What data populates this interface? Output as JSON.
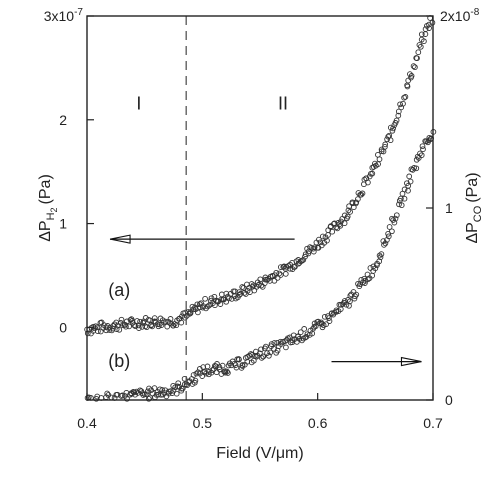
{
  "chart_data": {
    "type": "scatter",
    "xlabel": "Field (V/μm)",
    "xlim": [
      0.4,
      0.7
    ],
    "x_ticks": [
      "0.4",
      "0.5",
      "0.6",
      "0.7"
    ],
    "y_left": {
      "label_main": "ΔP",
      "label_sub": "H",
      "label_subsub": "2",
      "label_unit": "(Pa)",
      "lim": [
        -0.7,
        3.0
      ],
      "ticks": [
        "0",
        "1",
        "2"
      ],
      "top_tick": "3x10",
      "top_tick_exp": "-7"
    },
    "y_right": {
      "label_main": "ΔP",
      "label_sub": "CO",
      "label_unit": "(Pa)",
      "lim": [
        0,
        2
      ],
      "ticks": [
        "0",
        "1"
      ],
      "top_tick": "2x10",
      "top_tick_exp": "-8"
    },
    "divider_x": 0.486,
    "regions": [
      {
        "label": "I",
        "x": 0.445,
        "y": 2.1
      },
      {
        "label": "II",
        "x": 0.57,
        "y": 2.1
      }
    ],
    "annotations": [
      {
        "label": "(a)",
        "x": 0.428,
        "y": 0.3
      },
      {
        "label": "(b)",
        "x": 0.428,
        "y": -0.38
      }
    ],
    "arrows": [
      {
        "from_x": 0.58,
        "from_y": 0.85,
        "to_x": 0.42,
        "to_y": 0.85,
        "axis": "left"
      },
      {
        "from_x": 0.612,
        "from_y": -0.33,
        "to_x": 0.69,
        "to_y": -0.33,
        "axis": "left"
      }
    ],
    "series": [
      {
        "axis": "left",
        "x": [
          0.4,
          0.425,
          0.45,
          0.475,
          0.485,
          0.5,
          0.525,
          0.55,
          0.575,
          0.6,
          0.625,
          0.65,
          0.665,
          0.68,
          0.69,
          0.7
        ],
        "y": [
          -0.02,
          0.02,
          0.05,
          0.06,
          0.1,
          0.22,
          0.3,
          0.42,
          0.58,
          0.8,
          1.08,
          1.55,
          1.9,
          2.4,
          2.75,
          3.0
        ]
      },
      {
        "axis": "right",
        "x": [
          0.4,
          0.425,
          0.45,
          0.475,
          0.49,
          0.5,
          0.525,
          0.55,
          0.575,
          0.6,
          0.625,
          0.65,
          0.665,
          0.68,
          0.69,
          0.7
        ],
        "y": [
          0.0,
          0.01,
          0.03,
          0.05,
          0.1,
          0.15,
          0.17,
          0.24,
          0.3,
          0.38,
          0.5,
          0.7,
          0.92,
          1.15,
          1.3,
          1.4
        ]
      }
    ]
  }
}
